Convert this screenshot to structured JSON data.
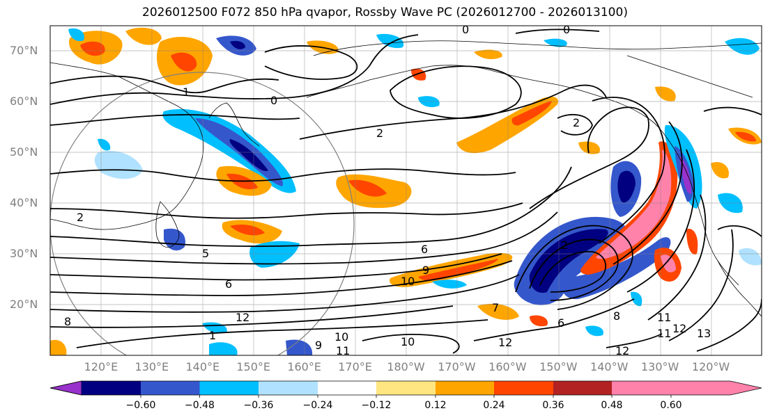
{
  "title": "2026012500 F072 850 hPa qvapor, Rossby Wave PC (2026012700 - 2026013100)",
  "lat_labels": [
    {
      "id": "70n",
      "text": "70°N",
      "lat": 70
    },
    {
      "id": "60n",
      "text": "60°N",
      "lat": 60
    },
    {
      "id": "50n",
      "text": "50°N",
      "lat": 50
    },
    {
      "id": "40n",
      "text": "40°N",
      "lat": 40
    },
    {
      "id": "30n",
      "text": "30°N",
      "lat": 30
    },
    {
      "id": "20n",
      "text": "20°N",
      "lat": 20
    }
  ],
  "lon_labels": [
    {
      "id": "120e",
      "text": "120°E",
      "lon": 120
    },
    {
      "id": "130e",
      "text": "130°E",
      "lon": 130
    },
    {
      "id": "140e",
      "text": "140°E",
      "lon": 140
    },
    {
      "id": "150e",
      "text": "150°E",
      "lon": 150
    },
    {
      "id": "160e",
      "text": "160°E",
      "lon": 160
    },
    {
      "id": "170e",
      "text": "170°E",
      "lon": 170
    },
    {
      "id": "180w",
      "text": "180°W",
      "lon": 180
    },
    {
      "id": "170w",
      "text": "170°W",
      "lon": 190
    },
    {
      "id": "160w",
      "text": "160°W",
      "lon": 200
    },
    {
      "id": "150w",
      "text": "150°W",
      "lon": 210
    },
    {
      "id": "140w",
      "text": "140°W",
      "lon": 220
    },
    {
      "id": "130w",
      "text": "130°W",
      "lon": 230
    },
    {
      "id": "120w",
      "text": "120°W",
      "lon": 240
    }
  ],
  "colorbar": {
    "colors": [
      "#9932cc",
      "#000080",
      "#3557cc",
      "#00bfff",
      "#b0e2ff",
      "#ffffff",
      "#ffe680",
      "#ffa500",
      "#ff4500",
      "#b22222",
      "#ff82ab"
    ],
    "ticks": [
      "−0.60",
      "−0.48",
      "−0.36",
      "−0.24",
      "−0.12",
      "0.12",
      "0.24",
      "0.36",
      "0.48",
      "0.60"
    ]
  },
  "contour_labels": [
    {
      "id": "c0-top",
      "text": "0"
    },
    {
      "id": "c0-topright",
      "text": "0"
    },
    {
      "id": "c1-west",
      "text": "1"
    },
    {
      "id": "c0-mid",
      "text": "0"
    },
    {
      "id": "c2-north",
      "text": "2"
    },
    {
      "id": "c2-west",
      "text": "2"
    },
    {
      "id": "c2-gulf",
      "text": "2"
    },
    {
      "id": "c5",
      "text": "5"
    },
    {
      "id": "c6-a",
      "text": "6"
    },
    {
      "id": "c6-b",
      "text": "6"
    },
    {
      "id": "c6-c",
      "text": "6"
    },
    {
      "id": "c7",
      "text": "7"
    },
    {
      "id": "c8-a",
      "text": "8"
    },
    {
      "id": "c8-b",
      "text": "8"
    },
    {
      "id": "c9-a",
      "text": "9"
    },
    {
      "id": "c9-b",
      "text": "9"
    },
    {
      "id": "c10-a",
      "text": "10"
    },
    {
      "id": "c10-b",
      "text": "10"
    },
    {
      "id": "c10-c",
      "text": "10"
    },
    {
      "id": "c11-a",
      "text": "11"
    },
    {
      "id": "c11-b",
      "text": "11"
    },
    {
      "id": "c11-c",
      "text": "11"
    },
    {
      "id": "c12-a",
      "text": "12"
    },
    {
      "id": "c12-b",
      "text": "12"
    },
    {
      "id": "c12-c",
      "text": "12"
    },
    {
      "id": "c12-d",
      "text": "12"
    },
    {
      "id": "c13",
      "text": "13"
    },
    {
      "id": "c1-east",
      "text": "1"
    },
    {
      "id": "c2-east",
      "text": "2"
    }
  ]
}
